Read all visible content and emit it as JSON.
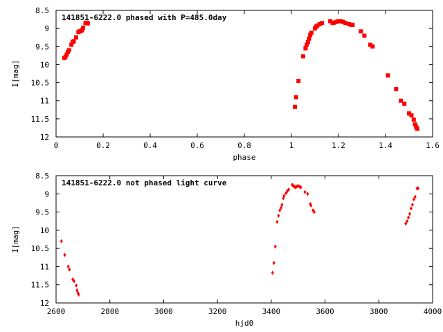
{
  "chart_data": [
    {
      "type": "scatter",
      "title": "141851-6222.0 phased with P=485.0day",
      "xlabel": "phase",
      "ylabel": "I[mag]",
      "xlim": [
        0,
        1.6
      ],
      "ylim": [
        8.5,
        12
      ],
      "y_inverted": true,
      "x_ticks": [
        "0",
        "0.2",
        "0.4",
        "0.6",
        "0.8",
        "1",
        "1.2",
        "1.4",
        "1.6"
      ],
      "y_ticks": [
        "8.5",
        "9",
        "9.5",
        "10",
        "10.5",
        "11",
        "11.5",
        "12"
      ],
      "marker": "filled-square",
      "color": "#ff0000",
      "series": [
        {
          "points": [
            [
              0.035,
              9.82
            ],
            [
              0.04,
              9.78
            ],
            [
              0.045,
              9.72
            ],
            [
              0.05,
              9.65
            ],
            [
              0.055,
              9.6
            ],
            [
              0.065,
              9.45
            ],
            [
              0.07,
              9.38
            ],
            [
              0.075,
              9.35
            ],
            [
              0.085,
              9.25
            ],
            [
              0.095,
              9.1
            ],
            [
              0.1,
              9.08
            ],
            [
              0.105,
              9.07
            ],
            [
              0.11,
              9.05
            ],
            [
              0.115,
              8.98
            ],
            [
              0.125,
              8.85
            ],
            [
              0.13,
              8.84
            ],
            [
              0.135,
              8.86
            ],
            [
              1.015,
              11.17
            ],
            [
              1.02,
              10.9
            ],
            [
              1.03,
              10.45
            ],
            [
              1.05,
              9.77
            ],
            [
              1.06,
              9.55
            ],
            [
              1.065,
              9.45
            ],
            [
              1.07,
              9.38
            ],
            [
              1.075,
              9.28
            ],
            [
              1.08,
              9.18
            ],
            [
              1.085,
              9.12
            ],
            [
              1.1,
              9.0
            ],
            [
              1.105,
              8.95
            ],
            [
              1.11,
              8.92
            ],
            [
              1.12,
              8.88
            ],
            [
              1.13,
              8.85
            ],
            [
              1.165,
              8.8
            ],
            [
              1.175,
              8.85
            ],
            [
              1.18,
              8.84
            ],
            [
              1.19,
              8.82
            ],
            [
              1.2,
              8.8
            ],
            [
              1.21,
              8.8
            ],
            [
              1.22,
              8.82
            ],
            [
              1.23,
              8.85
            ],
            [
              1.245,
              8.88
            ],
            [
              1.255,
              8.9
            ],
            [
              1.26,
              8.9
            ],
            [
              1.295,
              9.08
            ],
            [
              1.31,
              9.2
            ],
            [
              1.335,
              9.45
            ],
            [
              1.345,
              9.5
            ],
            [
              1.41,
              10.3
            ],
            [
              1.445,
              10.68
            ],
            [
              1.465,
              11.0
            ],
            [
              1.48,
              11.08
            ],
            [
              1.5,
              11.35
            ],
            [
              1.51,
              11.4
            ],
            [
              1.52,
              11.52
            ],
            [
              1.525,
              11.65
            ],
            [
              1.53,
              11.72
            ],
            [
              1.535,
              11.77
            ]
          ]
        }
      ]
    },
    {
      "type": "scatter",
      "title": "141851-6222.0 not phased light curve",
      "xlabel": "hjd0",
      "ylabel": "I[mag]",
      "xlim": [
        2600,
        4000
      ],
      "ylim": [
        8.5,
        12
      ],
      "y_inverted": true,
      "x_ticks": [
        "2600",
        "2800",
        "3000",
        "3200",
        "3400",
        "3600",
        "3800",
        "4000"
      ],
      "y_ticks": [
        "8.5",
        "9",
        "9.5",
        "10",
        "10.5",
        "11",
        "11.5",
        "12"
      ],
      "marker": "diamond",
      "color": "#ff0000",
      "series": [
        {
          "points": [
            [
              2620,
              10.3
            ],
            [
              2632,
              10.68
            ],
            [
              2645,
              11.0
            ],
            [
              2650,
              11.08
            ],
            [
              2662,
              11.35
            ],
            [
              2667,
              11.4
            ],
            [
              2675,
              11.52
            ],
            [
              2678,
              11.65
            ],
            [
              2681,
              11.72
            ],
            [
              2684,
              11.77
            ],
            [
              3405,
              11.17
            ],
            [
              3410,
              10.9
            ],
            [
              3415,
              10.45
            ],
            [
              3422,
              9.77
            ],
            [
              3427,
              9.6
            ],
            [
              3432,
              9.45
            ],
            [
              3437,
              9.38
            ],
            [
              3440,
              9.3
            ],
            [
              3445,
              9.12
            ],
            [
              3448,
              9.05
            ],
            [
              3455,
              8.98
            ],
            [
              3460,
              8.92
            ],
            [
              3465,
              8.88
            ],
            [
              3478,
              8.75
            ],
            [
              3482,
              8.78
            ],
            [
              3486,
              8.8
            ],
            [
              3490,
              8.82
            ],
            [
              3495,
              8.8
            ],
            [
              3500,
              8.78
            ],
            [
              3505,
              8.8
            ],
            [
              3510,
              8.82
            ],
            [
              3525,
              8.95
            ],
            [
              3535,
              9.0
            ],
            [
              3545,
              9.28
            ],
            [
              3548,
              9.32
            ],
            [
              3555,
              9.45
            ],
            [
              3560,
              9.5
            ],
            [
              3900,
              9.82
            ],
            [
              3905,
              9.75
            ],
            [
              3910,
              9.65
            ],
            [
              3915,
              9.55
            ],
            [
              3920,
              9.4
            ],
            [
              3925,
              9.3
            ],
            [
              3930,
              9.15
            ],
            [
              3935,
              9.08
            ],
            [
              3942,
              8.85
            ],
            [
              3946,
              8.85
            ]
          ]
        }
      ]
    }
  ]
}
